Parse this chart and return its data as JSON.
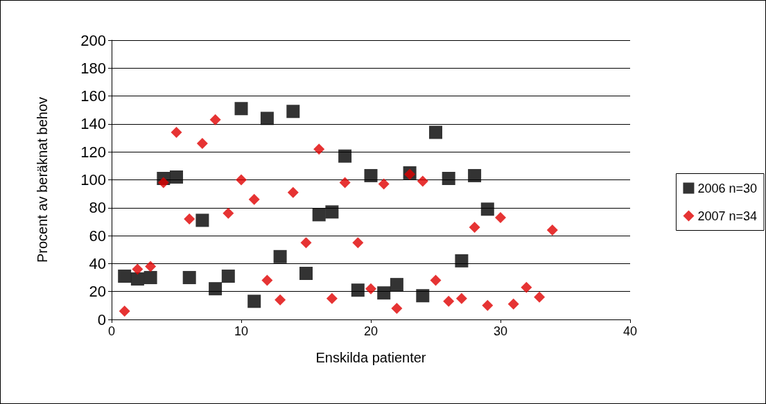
{
  "chart_data": {
    "type": "scatter",
    "xlabel": "Enskilda patienter",
    "ylabel": "Procent av beräknat behov",
    "xlim": [
      0,
      40
    ],
    "xticks": [
      0,
      10,
      20,
      30,
      40
    ],
    "ylim": [
      0,
      200
    ],
    "yticks": [
      0,
      20,
      40,
      60,
      80,
      100,
      120,
      140,
      160,
      180,
      200
    ],
    "grid": "y",
    "legend": "right",
    "series": [
      {
        "name": "2006 n=30",
        "color": "#000000",
        "marker": "square",
        "x": [
          1,
          2,
          3,
          4,
          5,
          6,
          7,
          8,
          9,
          10,
          11,
          12,
          13,
          14,
          15,
          16,
          17,
          18,
          19,
          20,
          21,
          22,
          23,
          24,
          25,
          26,
          27,
          28,
          29
        ],
        "values": [
          31,
          29,
          30,
          101,
          102,
          30,
          71,
          22,
          31,
          151,
          13,
          144,
          45,
          149,
          33,
          75,
          77,
          117,
          21,
          103,
          19,
          25,
          105,
          17,
          134,
          101,
          42,
          103,
          79
        ]
      },
      {
        "name": "2007 n=34",
        "color": "#e00000",
        "marker": "diamond",
        "x": [
          1,
          2,
          3,
          4,
          5,
          6,
          7,
          8,
          9,
          10,
          11,
          12,
          13,
          14,
          15,
          16,
          17,
          18,
          19,
          20,
          21,
          22,
          23,
          24,
          25,
          26,
          27,
          28,
          29,
          30,
          31,
          32,
          33,
          34
        ],
        "values": [
          6,
          36,
          38,
          98,
          134,
          72,
          126,
          143,
          76,
          100,
          86,
          28,
          14,
          91,
          55,
          122,
          15,
          98,
          55,
          22,
          97,
          8,
          104,
          99,
          28,
          13,
          15,
          66,
          10,
          73,
          11,
          23,
          16,
          64
        ]
      }
    ]
  }
}
